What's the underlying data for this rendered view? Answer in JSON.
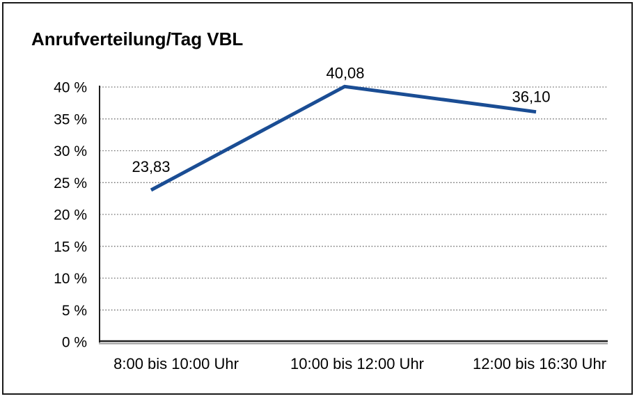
{
  "page": {
    "background_color": "#ffffff",
    "frame_border_color": "#1a1a1a"
  },
  "chart_data": {
    "type": "line",
    "title": "Anrufverteilung/Tag VBL",
    "categories": [
      "8:00 bis 10:00 Uhr",
      "10:00 bis 12:00 Uhr",
      "12:00 bis 16:30 Uhr"
    ],
    "values": [
      23.83,
      40.08,
      36.1
    ],
    "value_labels": [
      "23,83",
      "40,08",
      "36,10"
    ],
    "ylim": [
      0,
      40
    ],
    "y_ticks": [
      0,
      5,
      10,
      15,
      20,
      25,
      30,
      35,
      40
    ],
    "y_tick_labels": [
      "0 %",
      "5 %",
      "10 %",
      "15 %",
      "20 %",
      "25 %",
      "30 %",
      "35 %",
      "40 %"
    ],
    "unit": "%",
    "grid": "horizontal-dotted",
    "legend": "none",
    "data_labels_shown": true,
    "colors": {
      "line": "#1a4d94",
      "grid": "#6f6f6f",
      "axis": "#1f1f1f",
      "axis_shadow": "#9e9e9e",
      "text": "#000000"
    }
  }
}
